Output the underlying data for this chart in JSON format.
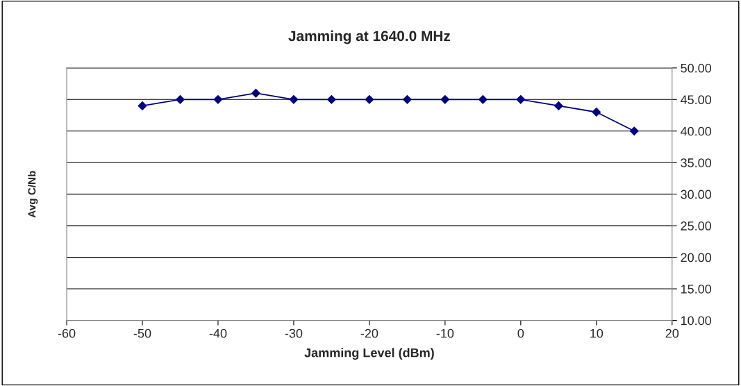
{
  "chart_data": {
    "type": "line",
    "title": "Jamming at 1640.0 MHz",
    "xlabel": "Jamming Level (dBm)",
    "ylabel": "Avg C/Nb",
    "x": [
      -50,
      -45,
      -40,
      -35,
      -30,
      -25,
      -20,
      -15,
      -10,
      -5,
      0,
      5,
      10,
      15
    ],
    "series": [
      {
        "color": "#000080",
        "values": [
          44,
          45,
          45,
          46,
          45,
          45,
          45,
          45,
          45,
          45,
          45,
          44,
          43,
          40
        ]
      }
    ],
    "xlim": [
      -60,
      20
    ],
    "xticks": [
      -60,
      -50,
      -40,
      -30,
      -20,
      -10,
      0,
      10,
      20
    ],
    "ylim": [
      10,
      50
    ],
    "yticks": [
      {
        "value": 10,
        "label": "10.00"
      },
      {
        "value": 15,
        "label": "15.00"
      },
      {
        "value": 20,
        "label": "20.00"
      },
      {
        "value": 25,
        "label": "25.00"
      },
      {
        "value": 30,
        "label": "30.00"
      },
      {
        "value": 35,
        "label": "35.00"
      },
      {
        "value": 40,
        "label": "40.00"
      },
      {
        "value": 45,
        "label": "45.00"
      },
      {
        "value": 50,
        "label": "50.00"
      }
    ],
    "grid": "y",
    "marker": "diamond",
    "line_style": "solid"
  }
}
